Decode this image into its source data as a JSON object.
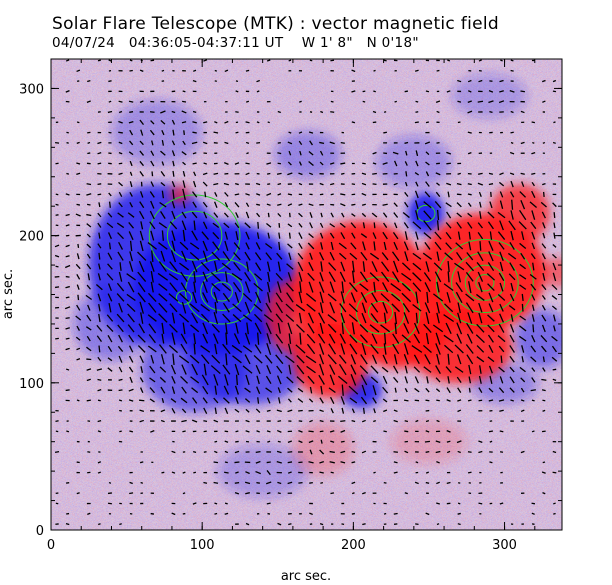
{
  "header": {
    "title": "Solar Flare Telescope (MTK) : vector magnetic field",
    "date": "04/07/24",
    "time_range": "04:36:05-04:37:11 UT",
    "position_w": "W 1' 8\"",
    "position_n": "N 0'18\""
  },
  "chart_data": {
    "type": "heatmap",
    "title": "Solar Flare Telescope (MTK) : vector magnetic field",
    "xlabel": "arc sec.",
    "ylabel": "arc sec.",
    "xlim": [
      0,
      338
    ],
    "ylim": [
      0,
      320
    ],
    "xticks": [
      0,
      100,
      200,
      300
    ],
    "yticks": [
      0,
      100,
      200,
      300
    ],
    "colors": {
      "positive_polarity": "#ff1a1a",
      "negative_polarity": "#1a1aee",
      "background": "#d9c8e0",
      "contour": "#33cc33",
      "vectors": "#000000"
    },
    "negative_regions": [
      {
        "x": 110,
        "y": 165,
        "rx": 55,
        "ry": 45,
        "strength": 1.0
      },
      {
        "x": 70,
        "y": 180,
        "rx": 45,
        "ry": 55,
        "strength": 0.85
      },
      {
        "x": 130,
        "y": 115,
        "rx": 40,
        "ry": 30,
        "strength": 0.7
      },
      {
        "x": 95,
        "y": 110,
        "rx": 35,
        "ry": 30,
        "strength": 0.6
      },
      {
        "x": 40,
        "y": 140,
        "rx": 25,
        "ry": 25,
        "strength": 0.4
      },
      {
        "x": 248,
        "y": 215,
        "rx": 12,
        "ry": 14,
        "strength": 1.0
      },
      {
        "x": 205,
        "y": 95,
        "rx": 14,
        "ry": 12,
        "strength": 0.9
      },
      {
        "x": 325,
        "y": 130,
        "rx": 18,
        "ry": 20,
        "strength": 0.5
      },
      {
        "x": 300,
        "y": 100,
        "rx": 22,
        "ry": 14,
        "strength": 0.35
      },
      {
        "x": 170,
        "y": 255,
        "rx": 22,
        "ry": 16,
        "strength": 0.35
      },
      {
        "x": 70,
        "y": 270,
        "rx": 30,
        "ry": 22,
        "strength": 0.3
      },
      {
        "x": 140,
        "y": 40,
        "rx": 30,
        "ry": 18,
        "strength": 0.25
      },
      {
        "x": 290,
        "y": 295,
        "rx": 25,
        "ry": 15,
        "strength": 0.25
      },
      {
        "x": 240,
        "y": 250,
        "rx": 25,
        "ry": 18,
        "strength": 0.3
      }
    ],
    "positive_regions": [
      {
        "x": 205,
        "y": 165,
        "rx": 45,
        "ry": 45,
        "strength": 1.0
      },
      {
        "x": 230,
        "y": 145,
        "rx": 35,
        "ry": 35,
        "strength": 1.0
      },
      {
        "x": 285,
        "y": 175,
        "rx": 42,
        "ry": 40,
        "strength": 1.0
      },
      {
        "x": 270,
        "y": 125,
        "rx": 35,
        "ry": 25,
        "strength": 0.9
      },
      {
        "x": 185,
        "y": 115,
        "rx": 25,
        "ry": 25,
        "strength": 0.9
      },
      {
        "x": 310,
        "y": 215,
        "rx": 20,
        "ry": 20,
        "strength": 0.8
      },
      {
        "x": 160,
        "y": 145,
        "rx": 18,
        "ry": 25,
        "strength": 0.8
      },
      {
        "x": 85,
        "y": 228,
        "rx": 7,
        "ry": 6,
        "strength": 0.7
      },
      {
        "x": 335,
        "y": 175,
        "rx": 10,
        "ry": 10,
        "strength": 0.6
      },
      {
        "x": 180,
        "y": 55,
        "rx": 20,
        "ry": 18,
        "strength": 0.25
      },
      {
        "x": 250,
        "y": 60,
        "rx": 25,
        "ry": 15,
        "strength": 0.2
      }
    ],
    "contours": [
      {
        "cx": 113,
        "cy": 162,
        "rx": [
          7,
          14,
          24
        ]
      },
      {
        "cx": 88,
        "cy": 158,
        "rx": [
          5
        ]
      },
      {
        "cx": 218,
        "cy": 148,
        "rx": [
          8,
          16,
          26
        ]
      },
      {
        "cx": 287,
        "cy": 168,
        "rx": [
          6,
          13,
          22,
          32
        ]
      },
      {
        "cx": 248,
        "cy": 215,
        "rx": [
          6
        ]
      },
      {
        "cx": 95,
        "cy": 200,
        "rx": [
          18,
          30
        ]
      }
    ]
  }
}
